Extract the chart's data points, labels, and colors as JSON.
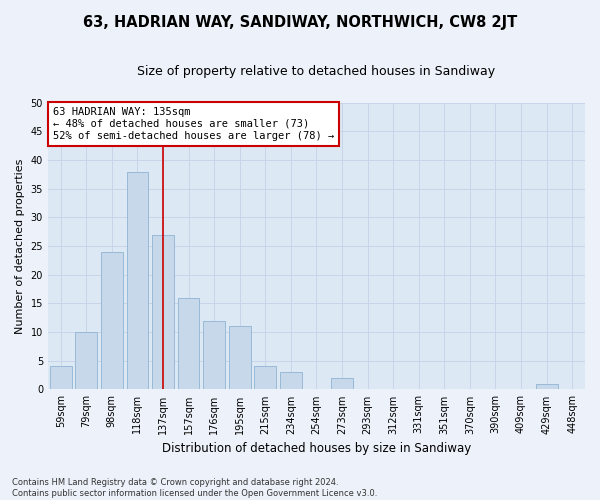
{
  "title": "63, HADRIAN WAY, SANDIWAY, NORTHWICH, CW8 2JT",
  "subtitle": "Size of property relative to detached houses in Sandiway",
  "xlabel": "Distribution of detached houses by size in Sandiway",
  "ylabel": "Number of detached properties",
  "categories": [
    "59sqm",
    "79sqm",
    "98sqm",
    "118sqm",
    "137sqm",
    "157sqm",
    "176sqm",
    "195sqm",
    "215sqm",
    "234sqm",
    "254sqm",
    "273sqm",
    "293sqm",
    "312sqm",
    "331sqm",
    "351sqm",
    "370sqm",
    "390sqm",
    "409sqm",
    "429sqm",
    "448sqm"
  ],
  "values": [
    4,
    10,
    24,
    38,
    27,
    16,
    12,
    11,
    4,
    3,
    0,
    2,
    0,
    0,
    0,
    0,
    0,
    0,
    0,
    1,
    0
  ],
  "bar_color": "#c8d8eb",
  "bar_edgecolor": "#8fb4d4",
  "bar_width": 0.85,
  "vline_x": 4,
  "vline_color": "#cc0000",
  "ylim": [
    0,
    50
  ],
  "yticks": [
    0,
    5,
    10,
    15,
    20,
    25,
    30,
    35,
    40,
    45,
    50
  ],
  "annotation_title": "63 HADRIAN WAY: 135sqm",
  "annotation_line1": "← 48% of detached houses are smaller (73)",
  "annotation_line2": "52% of semi-detached houses are larger (78) →",
  "annotation_box_color": "#cc0000",
  "grid_color": "#c8d4e8",
  "background_color": "#dce8f4",
  "fig_background": "#edf2fa",
  "footer_line1": "Contains HM Land Registry data © Crown copyright and database right 2024.",
  "footer_line2": "Contains public sector information licensed under the Open Government Licence v3.0.",
  "title_fontsize": 10.5,
  "subtitle_fontsize": 9,
  "ylabel_fontsize": 8,
  "xlabel_fontsize": 8.5,
  "tick_fontsize": 7,
  "annotation_fontsize": 7.5,
  "footer_fontsize": 6
}
